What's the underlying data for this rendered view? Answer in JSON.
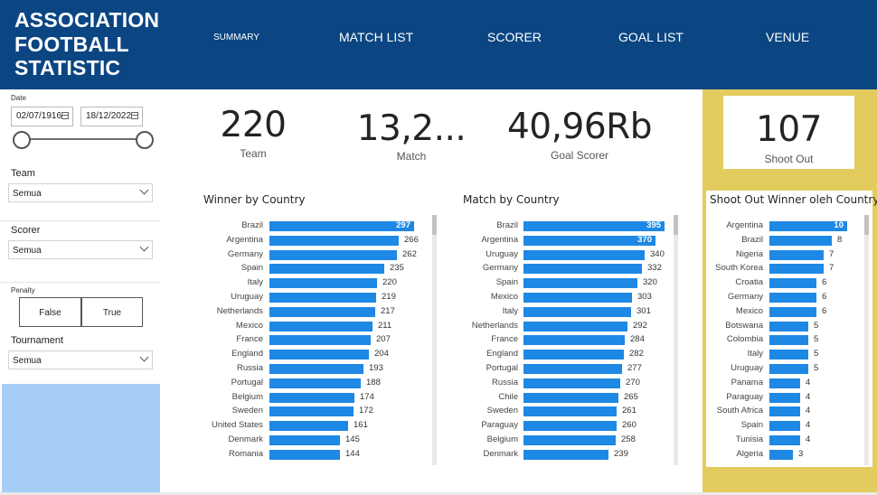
{
  "header": {
    "title": "ASSOCIATION FOOTBALL STATISTIC",
    "nav": [
      {
        "label": "SUMMARY",
        "small": true
      },
      {
        "label": "MATCH LIST"
      },
      {
        "label": "SCORER"
      },
      {
        "label": "GOAL LIST"
      },
      {
        "label": "VENUE"
      }
    ]
  },
  "filters": {
    "date_label": "Date",
    "date_start": "02/07/1916",
    "date_end": "18/12/2022",
    "team_label": "Team",
    "team_value": "Semua",
    "scorer_label": "Scorer",
    "scorer_value": "Semua",
    "penalty_label": "Penalty",
    "penalty_false": "False",
    "penalty_true": "True",
    "tournament_label": "Tournament",
    "tournament_value": "Semua"
  },
  "kpis": {
    "team_value": "220",
    "team_label": "Team",
    "match_value": "13,2...",
    "match_label": "Match",
    "goal_value": "40,96Rb",
    "goal_label": "Goal Scorer",
    "shootout_value": "107",
    "shootout_label": "Shoot Out"
  },
  "colors": {
    "bar": "#1e88e5",
    "header": "#0b4683",
    "accent_panel": "#e3cc5e",
    "sidebar_bottom": "#a6cdf6"
  },
  "chart_data": [
    {
      "type": "bar",
      "orientation": "horizontal",
      "title": "Winner by Country",
      "categories": [
        "Brazil",
        "Argentina",
        "Germany",
        "Spain",
        "Italy",
        "Uruguay",
        "Netherlands",
        "Mexico",
        "France",
        "England",
        "Russia",
        "Portugal",
        "Belgium",
        "Sweden",
        "United States",
        "Denmark",
        "Romania"
      ],
      "values": [
        297,
        266,
        262,
        235,
        220,
        219,
        217,
        211,
        207,
        204,
        193,
        188,
        174,
        172,
        161,
        145,
        144
      ]
    },
    {
      "type": "bar",
      "orientation": "horizontal",
      "title": "Match by Country",
      "categories": [
        "Brazil",
        "Argentina",
        "Uruguay",
        "Germany",
        "Spain",
        "Mexico",
        "Italy",
        "Netherlands",
        "France",
        "England",
        "Portugal",
        "Russia",
        "Chile",
        "Sweden",
        "Paraguay",
        "Belgium",
        "Denmark"
      ],
      "values": [
        395,
        370,
        340,
        332,
        320,
        303,
        301,
        292,
        284,
        282,
        277,
        270,
        265,
        261,
        260,
        258,
        239
      ]
    },
    {
      "type": "bar",
      "orientation": "horizontal",
      "title": "Shoot Out Winner oleh Country",
      "categories": [
        "Argentina",
        "Brazil",
        "Nigeria",
        "South Korea",
        "Croatia",
        "Germany",
        "Mexico",
        "Botswana",
        "Colombia",
        "Italy",
        "Uruguay",
        "Panama",
        "Paraguay",
        "South Africa",
        "Spain",
        "Tunisia",
        "Algeria"
      ],
      "values": [
        10,
        8,
        7,
        7,
        6,
        6,
        6,
        5,
        5,
        5,
        5,
        4,
        4,
        4,
        4,
        4,
        3
      ]
    }
  ]
}
